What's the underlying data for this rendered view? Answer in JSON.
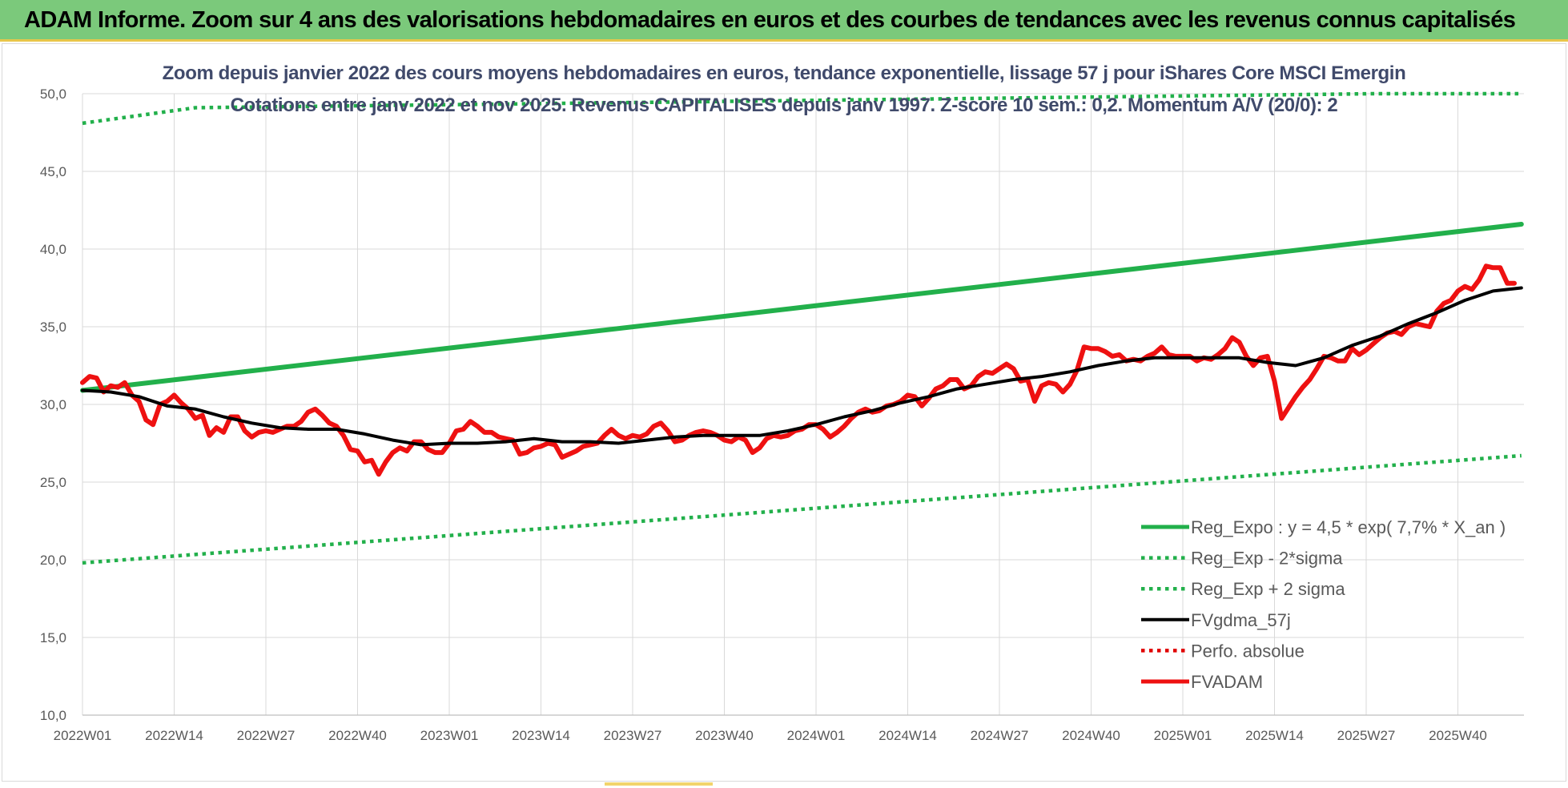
{
  "banner": {
    "title": "ADAM Informe. Zoom sur 4 ans des valorisations hebdomadaires en euros et des courbes de tendances avec les revenus connus capitalisés"
  },
  "colors": {
    "banner_bg": "#7bc97b",
    "reg_expo": "#22b04b",
    "sigma_lines": "#22b04b",
    "fvgdma": "#000000",
    "perfo": "#e00000",
    "fvadam": "#ee1111",
    "title_text": "#404a6b"
  },
  "chart_data": {
    "type": "line",
    "title": "Zoom depuis janvier 2022 des cours moyens hebdomadaires en euros, tendance exponentielle, lissage 57 j pour iShares Core MSCI Emergin",
    "subtitle": "Cotations entre janv 2022 et nov 2025. Revenus CAPITALISES depuis janv 1997. Z-score 10 sem.: 0,2. Momentum A/V (20/0): 2",
    "x_ticks": [
      {
        "label": "2022W01",
        "week": 0
      },
      {
        "label": "2022W14",
        "week": 13
      },
      {
        "label": "2022W27",
        "week": 26
      },
      {
        "label": "2022W40",
        "week": 39
      },
      {
        "label": "2023W01",
        "week": 52
      },
      {
        "label": "2023W14",
        "week": 65
      },
      {
        "label": "2023W27",
        "week": 78
      },
      {
        "label": "2023W40",
        "week": 91
      },
      {
        "label": "2024W01",
        "week": 104
      },
      {
        "label": "2024W14",
        "week": 117
      },
      {
        "label": "2024W27",
        "week": 130
      },
      {
        "label": "2024W40",
        "week": 143
      },
      {
        "label": "2025W01",
        "week": 156
      },
      {
        "label": "2025W14",
        "week": 169
      },
      {
        "label": "2025W27",
        "week": 182
      },
      {
        "label": "2025W40",
        "week": 195
      }
    ],
    "x_range": [
      0,
      204
    ],
    "y_ticks": [
      "10,0",
      "15,0",
      "20,0",
      "25,0",
      "30,0",
      "35,0",
      "40,0",
      "45,0",
      "50,0"
    ],
    "ylim": [
      10,
      50
    ],
    "grid": true,
    "legend_position": "bottom-right",
    "series": [
      {
        "name": "Reg_Expo : y = 4,5 * exp( 7,7% *  X_an )",
        "style": "solid-thick",
        "color": "#22b04b",
        "points": [
          [
            0,
            30.9
          ],
          [
            204,
            41.6
          ]
        ]
      },
      {
        "name": "Reg_Exp - 2*sigma",
        "style": "dotted",
        "color": "#22b04b",
        "points": [
          [
            0,
            19.8
          ],
          [
            204,
            26.7
          ]
        ]
      },
      {
        "name": "Reg_Exp + 2 sigma",
        "style": "dotted",
        "color": "#22b04b",
        "points": [
          [
            0,
            48.1
          ],
          [
            16,
            49.1
          ],
          [
            183,
            50.0
          ],
          [
            204,
            50.0
          ]
        ]
      },
      {
        "name": "FVgdma_57j",
        "style": "solid",
        "color": "#000000",
        "points": [
          [
            0,
            30.9
          ],
          [
            4,
            30.8
          ],
          [
            8,
            30.5
          ],
          [
            12,
            29.9
          ],
          [
            16,
            29.7
          ],
          [
            20,
            29.2
          ],
          [
            24,
            28.8
          ],
          [
            28,
            28.5
          ],
          [
            32,
            28.4
          ],
          [
            36,
            28.4
          ],
          [
            40,
            28.1
          ],
          [
            44,
            27.7
          ],
          [
            48,
            27.4
          ],
          [
            52,
            27.5
          ],
          [
            56,
            27.5
          ],
          [
            60,
            27.6
          ],
          [
            64,
            27.8
          ],
          [
            68,
            27.6
          ],
          [
            72,
            27.6
          ],
          [
            76,
            27.5
          ],
          [
            80,
            27.7
          ],
          [
            84,
            27.9
          ],
          [
            88,
            28.0
          ],
          [
            92,
            28.0
          ],
          [
            96,
            28.0
          ],
          [
            100,
            28.3
          ],
          [
            104,
            28.7
          ],
          [
            108,
            29.2
          ],
          [
            112,
            29.6
          ],
          [
            116,
            30.1
          ],
          [
            120,
            30.5
          ],
          [
            124,
            31.0
          ],
          [
            128,
            31.3
          ],
          [
            132,
            31.6
          ],
          [
            136,
            31.8
          ],
          [
            140,
            32.1
          ],
          [
            144,
            32.5
          ],
          [
            148,
            32.8
          ],
          [
            152,
            33.0
          ],
          [
            156,
            33.0
          ],
          [
            160,
            33.0
          ],
          [
            164,
            33.0
          ],
          [
            168,
            32.7
          ],
          [
            172,
            32.5
          ],
          [
            176,
            33.0
          ],
          [
            180,
            33.8
          ],
          [
            184,
            34.4
          ],
          [
            188,
            35.2
          ],
          [
            192,
            35.9
          ],
          [
            196,
            36.7
          ],
          [
            200,
            37.3
          ],
          [
            204,
            37.5
          ]
        ]
      },
      {
        "name": "Perfo. absolue",
        "style": "dotted",
        "color": "#e00000",
        "points": []
      },
      {
        "name": "FVADAM",
        "style": "solid-thick",
        "color": "#ee1111",
        "points": [
          [
            0,
            31.4
          ],
          [
            1,
            31.8
          ],
          [
            2,
            31.7
          ],
          [
            3,
            30.8
          ],
          [
            4,
            31.2
          ],
          [
            5,
            31.1
          ],
          [
            6,
            31.4
          ],
          [
            7,
            30.6
          ],
          [
            8,
            30.2
          ],
          [
            9,
            29.0
          ],
          [
            10,
            28.7
          ],
          [
            11,
            30.0
          ],
          [
            12,
            30.2
          ],
          [
            13,
            30.6
          ],
          [
            14,
            30.1
          ],
          [
            15,
            29.7
          ],
          [
            16,
            29.1
          ],
          [
            17,
            29.3
          ],
          [
            18,
            28.0
          ],
          [
            19,
            28.5
          ],
          [
            20,
            28.2
          ],
          [
            21,
            29.2
          ],
          [
            22,
            29.2
          ],
          [
            23,
            28.3
          ],
          [
            24,
            27.9
          ],
          [
            25,
            28.2
          ],
          [
            26,
            28.3
          ],
          [
            27,
            28.2
          ],
          [
            28,
            28.4
          ],
          [
            29,
            28.6
          ],
          [
            30,
            28.6
          ],
          [
            31,
            28.9
          ],
          [
            32,
            29.5
          ],
          [
            33,
            29.7
          ],
          [
            34,
            29.3
          ],
          [
            35,
            28.8
          ],
          [
            36,
            28.6
          ],
          [
            37,
            28.0
          ],
          [
            38,
            27.1
          ],
          [
            39,
            27.0
          ],
          [
            40,
            26.3
          ],
          [
            41,
            26.4
          ],
          [
            42,
            25.5
          ],
          [
            43,
            26.3
          ],
          [
            44,
            26.9
          ],
          [
            45,
            27.2
          ],
          [
            46,
            27.0
          ],
          [
            47,
            27.6
          ],
          [
            48,
            27.6
          ],
          [
            49,
            27.1
          ],
          [
            50,
            26.9
          ],
          [
            51,
            26.9
          ],
          [
            52,
            27.5
          ],
          [
            53,
            28.3
          ],
          [
            54,
            28.4
          ],
          [
            55,
            28.9
          ],
          [
            56,
            28.6
          ],
          [
            57,
            28.2
          ],
          [
            58,
            28.2
          ],
          [
            59,
            27.9
          ],
          [
            60,
            27.8
          ],
          [
            61,
            27.7
          ],
          [
            62,
            26.8
          ],
          [
            63,
            26.9
          ],
          [
            64,
            27.2
          ],
          [
            65,
            27.3
          ],
          [
            66,
            27.5
          ],
          [
            67,
            27.4
          ],
          [
            68,
            26.6
          ],
          [
            69,
            26.8
          ],
          [
            70,
            27.0
          ],
          [
            71,
            27.3
          ],
          [
            72,
            27.4
          ],
          [
            73,
            27.5
          ],
          [
            74,
            28.0
          ],
          [
            75,
            28.4
          ],
          [
            76,
            28.0
          ],
          [
            77,
            27.8
          ],
          [
            78,
            28.0
          ],
          [
            79,
            27.9
          ],
          [
            80,
            28.1
          ],
          [
            81,
            28.6
          ],
          [
            82,
            28.8
          ],
          [
            83,
            28.3
          ],
          [
            84,
            27.6
          ],
          [
            85,
            27.7
          ],
          [
            86,
            28.0
          ],
          [
            87,
            28.2
          ],
          [
            88,
            28.3
          ],
          [
            89,
            28.2
          ],
          [
            90,
            28.0
          ],
          [
            91,
            27.7
          ],
          [
            92,
            27.6
          ],
          [
            93,
            27.9
          ],
          [
            94,
            27.7
          ],
          [
            95,
            26.9
          ],
          [
            96,
            27.2
          ],
          [
            97,
            27.8
          ],
          [
            98,
            28.0
          ],
          [
            99,
            27.9
          ],
          [
            100,
            28.0
          ],
          [
            101,
            28.3
          ],
          [
            102,
            28.4
          ],
          [
            103,
            28.7
          ],
          [
            104,
            28.7
          ],
          [
            105,
            28.4
          ],
          [
            106,
            27.9
          ],
          [
            107,
            28.2
          ],
          [
            108,
            28.6
          ],
          [
            109,
            29.1
          ],
          [
            110,
            29.5
          ],
          [
            111,
            29.7
          ],
          [
            112,
            29.5
          ],
          [
            113,
            29.6
          ],
          [
            114,
            29.9
          ],
          [
            115,
            30.0
          ],
          [
            116,
            30.2
          ],
          [
            117,
            30.6
          ],
          [
            118,
            30.5
          ],
          [
            119,
            29.9
          ],
          [
            120,
            30.4
          ],
          [
            121,
            31.0
          ],
          [
            122,
            31.2
          ],
          [
            123,
            31.6
          ],
          [
            124,
            31.6
          ],
          [
            125,
            31.0
          ],
          [
            126,
            31.2
          ],
          [
            127,
            31.8
          ],
          [
            128,
            32.1
          ],
          [
            129,
            32.0
          ],
          [
            130,
            32.3
          ],
          [
            131,
            32.6
          ],
          [
            132,
            32.3
          ],
          [
            133,
            31.5
          ],
          [
            134,
            31.6
          ],
          [
            135,
            30.2
          ],
          [
            136,
            31.2
          ],
          [
            137,
            31.4
          ],
          [
            138,
            31.3
          ],
          [
            139,
            30.8
          ],
          [
            140,
            31.3
          ],
          [
            141,
            32.2
          ],
          [
            142,
            33.7
          ],
          [
            143,
            33.6
          ],
          [
            144,
            33.6
          ],
          [
            145,
            33.4
          ],
          [
            146,
            33.1
          ],
          [
            147,
            33.2
          ],
          [
            148,
            32.8
          ],
          [
            149,
            32.9
          ],
          [
            150,
            32.8
          ],
          [
            151,
            33.1
          ],
          [
            152,
            33.3
          ],
          [
            153,
            33.7
          ],
          [
            154,
            33.2
          ],
          [
            155,
            33.1
          ],
          [
            156,
            33.1
          ],
          [
            157,
            33.1
          ],
          [
            158,
            32.8
          ],
          [
            159,
            33.0
          ],
          [
            160,
            32.9
          ],
          [
            161,
            33.2
          ],
          [
            162,
            33.6
          ],
          [
            163,
            34.3
          ],
          [
            164,
            34.0
          ],
          [
            165,
            33.1
          ],
          [
            166,
            32.5
          ],
          [
            167,
            33.0
          ],
          [
            168,
            33.1
          ],
          [
            169,
            31.5
          ],
          [
            170,
            29.1
          ],
          [
            171,
            29.8
          ],
          [
            172,
            30.5
          ],
          [
            173,
            31.1
          ],
          [
            174,
            31.6
          ],
          [
            175,
            32.3
          ],
          [
            176,
            33.1
          ],
          [
            177,
            33.0
          ],
          [
            178,
            32.8
          ],
          [
            179,
            32.8
          ],
          [
            180,
            33.6
          ],
          [
            181,
            33.2
          ],
          [
            182,
            33.5
          ],
          [
            183,
            33.9
          ],
          [
            184,
            34.3
          ],
          [
            185,
            34.6
          ],
          [
            186,
            34.7
          ],
          [
            187,
            34.5
          ],
          [
            188,
            35.0
          ],
          [
            189,
            35.2
          ],
          [
            190,
            35.1
          ],
          [
            191,
            35.0
          ],
          [
            192,
            36.0
          ],
          [
            193,
            36.5
          ],
          [
            194,
            36.7
          ],
          [
            195,
            37.3
          ],
          [
            196,
            37.6
          ],
          [
            197,
            37.4
          ],
          [
            198,
            38.0
          ],
          [
            199,
            38.9
          ],
          [
            200,
            38.8
          ],
          [
            201,
            38.8
          ],
          [
            202,
            37.8
          ],
          [
            203,
            37.8
          ]
        ]
      }
    ]
  }
}
